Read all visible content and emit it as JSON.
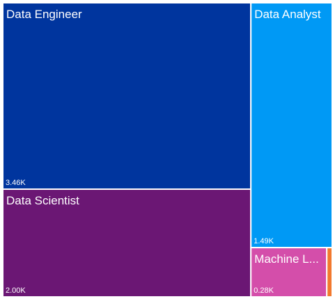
{
  "chart_data": {
    "type": "treemap",
    "title": "",
    "items": [
      {
        "name": "Data Engineer",
        "display_name": "Data Engineer",
        "value": 3460,
        "value_label": "3.46K",
        "color": "#00359E"
      },
      {
        "name": "Data Scientist",
        "display_name": "Data Scientist",
        "value": 2000,
        "value_label": "2.00K",
        "color": "#6B1774"
      },
      {
        "name": "Data Analyst",
        "display_name": "Data Analyst",
        "value": 1490,
        "value_label": "1.49K",
        "color": "#0099F5"
      },
      {
        "name": "Machine Learning Engineer",
        "display_name": "Machine L...",
        "value": 280,
        "value_label": "0.28K",
        "color": "#D44EAA"
      },
      {
        "name": "",
        "display_name": "",
        "value": 20,
        "value_label": "",
        "color": "#F2792E"
      }
    ]
  }
}
